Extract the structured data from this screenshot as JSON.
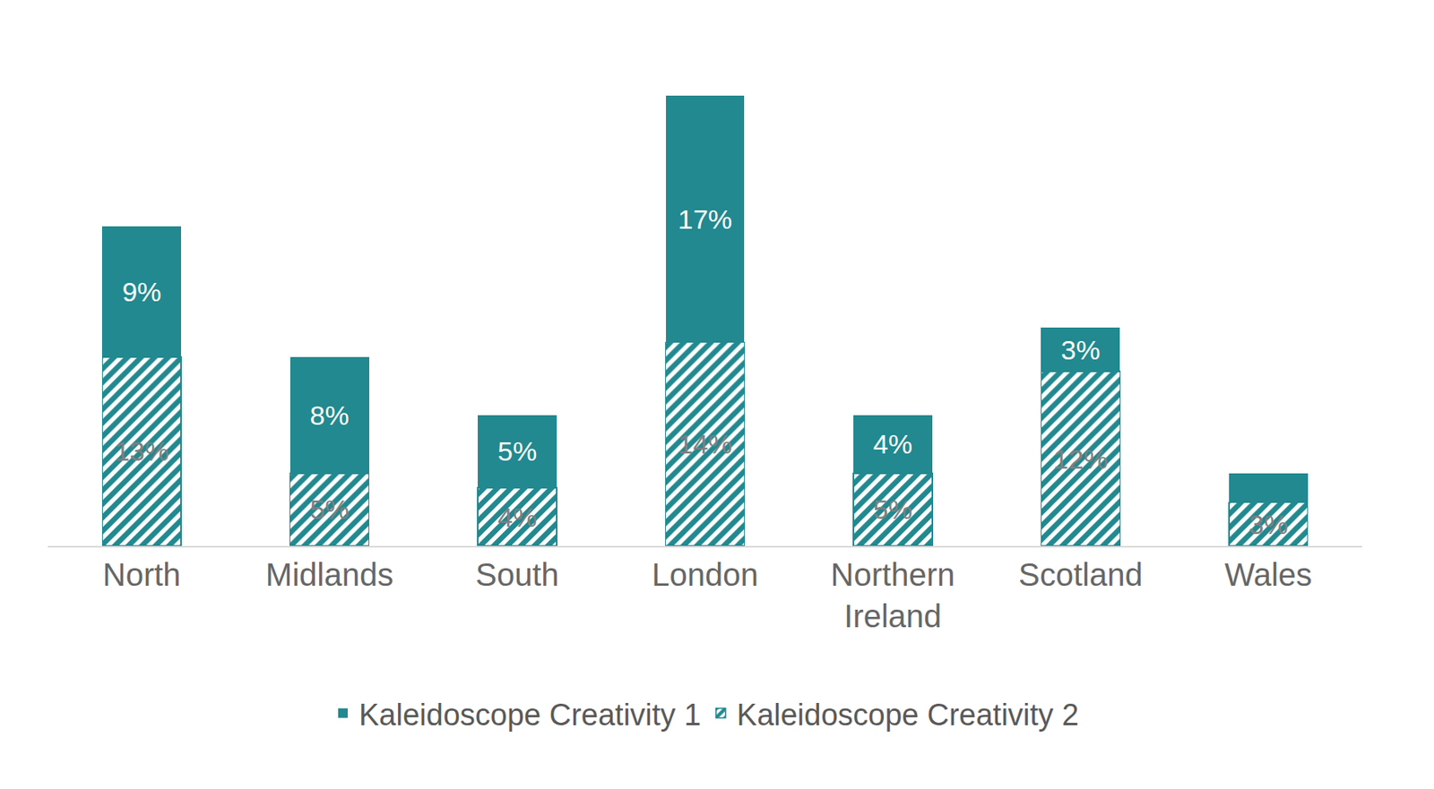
{
  "chart_data": {
    "type": "bar",
    "stacked": true,
    "data_labels": true,
    "tick_labels": "x",
    "grid": false,
    "legend": "bottom",
    "categories": [
      "North",
      "Midlands",
      "South",
      "London",
      "Northern Ireland",
      "Scotland",
      "Wales"
    ],
    "series": [
      {
        "name": "Kaleidoscope Creativity 1",
        "color": "#21898f",
        "marker": "solid",
        "values": [
          9,
          8,
          5,
          17,
          4,
          3,
          2
        ],
        "value_labels": [
          "9%",
          "8%",
          "5%",
          "17%",
          "4%",
          "3%",
          null
        ]
      },
      {
        "name": "Kaleidoscope Creativity 2",
        "color": "#21898f",
        "marker": "hatched",
        "values": [
          13,
          5,
          4,
          14,
          5,
          12,
          3
        ],
        "value_labels": [
          "13%",
          "5%",
          "4%",
          "14%",
          "5%",
          "12%",
          "3%"
        ]
      }
    ]
  }
}
